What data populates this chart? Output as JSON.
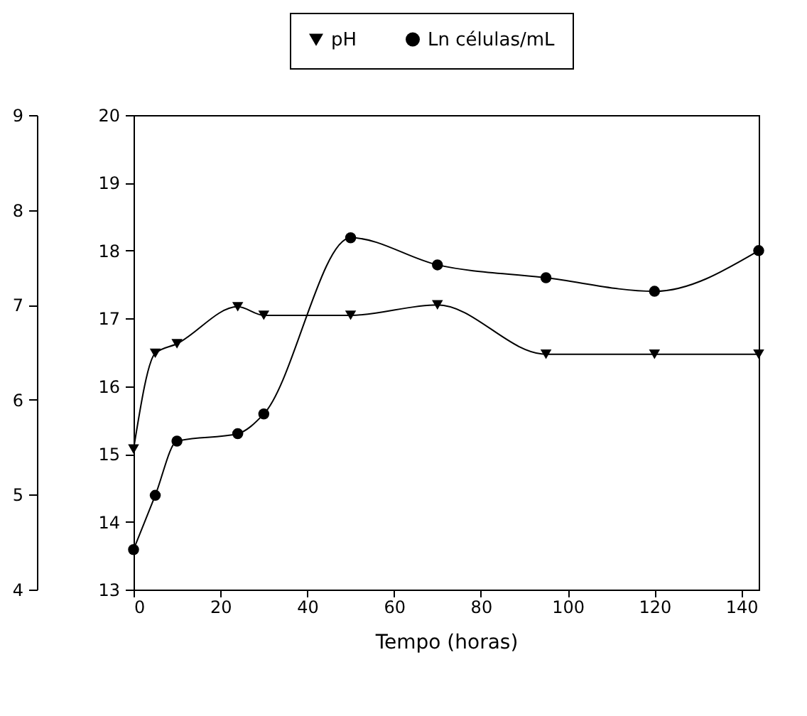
{
  "chart_data": {
    "type": "line",
    "xlabel": "Tempo (horas)",
    "x": [
      0,
      5,
      10,
      24,
      30,
      50,
      70,
      95,
      120,
      144
    ],
    "series": [
      {
        "name": "pH",
        "color": "#000000",
        "marker": "triangle",
        "axis": "y2",
        "values": [
          5.48,
          6.49,
          6.59,
          6.98,
          6.89,
          6.89,
          7.0,
          6.48,
          6.48,
          6.48
        ]
      },
      {
        "name": "Ln células/mL",
        "color": "#000000",
        "marker": "circle",
        "values": [
          13.59,
          14.39,
          15.19,
          15.3,
          15.59,
          18.19,
          17.79,
          17.6,
          17.4,
          18.0
        ]
      }
    ],
    "xlim": [
      0,
      144
    ],
    "xticks": [
      0,
      20,
      40,
      60,
      80,
      100,
      120,
      140
    ],
    "ylim": [
      13,
      20
    ],
    "yticks": [
      13,
      14,
      15,
      16,
      17,
      18,
      19,
      20
    ],
    "y2lim": [
      4,
      9
    ],
    "y2ticks": [
      4,
      5,
      6,
      7,
      8,
      9
    ],
    "grid": false,
    "legend": "top",
    "line_style": "solid"
  }
}
